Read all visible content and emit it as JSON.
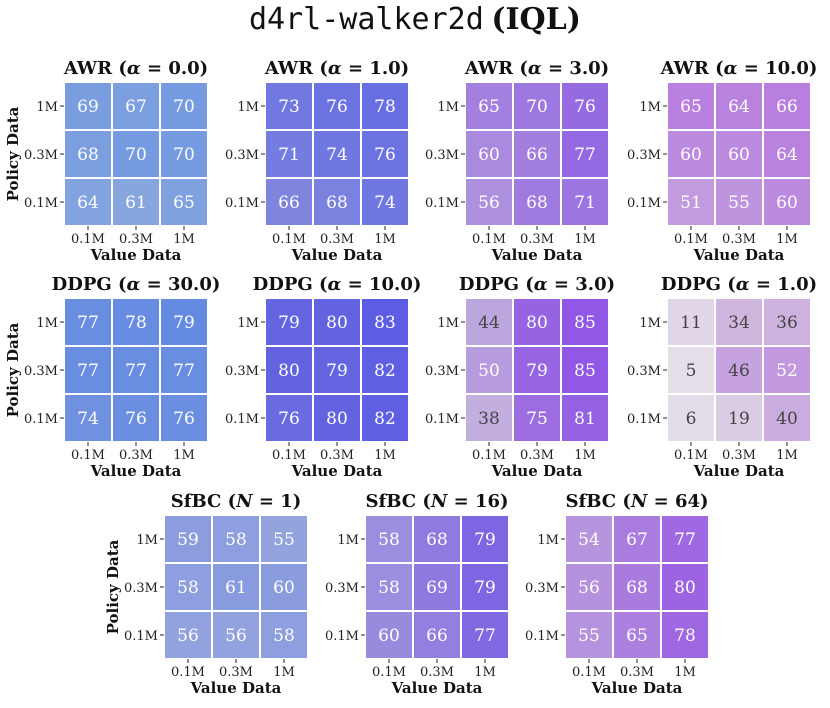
{
  "title": {
    "env": "d4rl-walker2d",
    "algo": "IQL"
  },
  "colors": {
    "low": "#ebe8f1",
    "cell_border": "#ffffff"
  },
  "chart_data": [
    {
      "type": "heatmap",
      "title": "AWR",
      "param": "α",
      "param_value": "0.0",
      "xlabel": "Value Data",
      "ylabel": "Policy Data",
      "xticks": [
        "0.1M",
        "0.3M",
        "1M"
      ],
      "yticks": [
        "1M",
        "0.3M",
        "0.1M"
      ],
      "values": [
        [
          69,
          67,
          70
        ],
        [
          68,
          70,
          70
        ],
        [
          64,
          61,
          65
        ]
      ]
    },
    {
      "type": "heatmap",
      "title": "AWR",
      "param": "α",
      "param_value": "1.0",
      "xlabel": "Value Data",
      "ylabel": "",
      "xticks": [
        "0.1M",
        "0.3M",
        "1M"
      ],
      "yticks": [
        "1M",
        "0.3M",
        "0.1M"
      ],
      "values": [
        [
          73,
          76,
          78
        ],
        [
          71,
          74,
          76
        ],
        [
          66,
          68,
          74
        ]
      ]
    },
    {
      "type": "heatmap",
      "title": "AWR",
      "param": "α",
      "param_value": "3.0",
      "xlabel": "Value Data",
      "ylabel": "",
      "xticks": [
        "0.1M",
        "0.3M",
        "1M"
      ],
      "yticks": [
        "1M",
        "0.3M",
        "0.1M"
      ],
      "values": [
        [
          65,
          70,
          76
        ],
        [
          60,
          66,
          77
        ],
        [
          56,
          68,
          71
        ]
      ]
    },
    {
      "type": "heatmap",
      "title": "AWR",
      "param": "α",
      "param_value": "10.0",
      "xlabel": "Value Data",
      "ylabel": "",
      "xticks": [
        "0.1M",
        "0.3M",
        "1M"
      ],
      "yticks": [
        "1M",
        "0.3M",
        "0.1M"
      ],
      "values": [
        [
          65,
          64,
          66
        ],
        [
          60,
          60,
          64
        ],
        [
          51,
          55,
          60
        ]
      ]
    },
    {
      "type": "heatmap",
      "title": "DDPG",
      "param": "α",
      "param_value": "30.0",
      "xlabel": "Value Data",
      "ylabel": "Policy Data",
      "xticks": [
        "0.1M",
        "0.3M",
        "1M"
      ],
      "yticks": [
        "1M",
        "0.3M",
        "0.1M"
      ],
      "values": [
        [
          77,
          78,
          79
        ],
        [
          77,
          77,
          77
        ],
        [
          74,
          76,
          76
        ]
      ]
    },
    {
      "type": "heatmap",
      "title": "DDPG",
      "param": "α",
      "param_value": "10.0",
      "xlabel": "Value Data",
      "ylabel": "",
      "xticks": [
        "0.1M",
        "0.3M",
        "1M"
      ],
      "yticks": [
        "1M",
        "0.3M",
        "0.1M"
      ],
      "values": [
        [
          79,
          80,
          83
        ],
        [
          80,
          79,
          82
        ],
        [
          76,
          80,
          82
        ]
      ]
    },
    {
      "type": "heatmap",
      "title": "DDPG",
      "param": "α",
      "param_value": "3.0",
      "xlabel": "Value Data",
      "ylabel": "",
      "xticks": [
        "0.1M",
        "0.3M",
        "1M"
      ],
      "yticks": [
        "1M",
        "0.3M",
        "0.1M"
      ],
      "values": [
        [
          44,
          80,
          85
        ],
        [
          50,
          79,
          85
        ],
        [
          38,
          75,
          81
        ]
      ]
    },
    {
      "type": "heatmap",
      "title": "DDPG",
      "param": "α",
      "param_value": "1.0",
      "xlabel": "Value Data",
      "ylabel": "",
      "xticks": [
        "0.1M",
        "0.3M",
        "1M"
      ],
      "yticks": [
        "1M",
        "0.3M",
        "0.1M"
      ],
      "values": [
        [
          11,
          34,
          36
        ],
        [
          5,
          46,
          52
        ],
        [
          6,
          19,
          40
        ]
      ]
    },
    {
      "type": "heatmap",
      "title": "SfBC",
      "param": "N",
      "param_value": "1",
      "xlabel": "Value Data",
      "ylabel": "Policy Data",
      "xticks": [
        "0.1M",
        "0.3M",
        "1M"
      ],
      "yticks": [
        "1M",
        "0.3M",
        "0.1M"
      ],
      "values": [
        [
          59,
          58,
          55
        ],
        [
          58,
          61,
          60
        ],
        [
          56,
          56,
          58
        ]
      ]
    },
    {
      "type": "heatmap",
      "title": "SfBC",
      "param": "N",
      "param_value": "16",
      "xlabel": "Value Data",
      "ylabel": "",
      "xticks": [
        "0.1M",
        "0.3M",
        "1M"
      ],
      "yticks": [
        "1M",
        "0.3M",
        "0.1M"
      ],
      "values": [
        [
          58,
          68,
          79
        ],
        [
          58,
          69,
          79
        ],
        [
          60,
          66,
          77
        ]
      ]
    },
    {
      "type": "heatmap",
      "title": "SfBC",
      "param": "N",
      "param_value": "64",
      "xlabel": "Value Data",
      "ylabel": "",
      "xticks": [
        "0.1M",
        "0.3M",
        "1M"
      ],
      "yticks": [
        "1M",
        "0.3M",
        "0.1M"
      ],
      "values": [
        [
          54,
          67,
          77
        ],
        [
          56,
          68,
          80
        ],
        [
          55,
          65,
          78
        ]
      ]
    }
  ]
}
